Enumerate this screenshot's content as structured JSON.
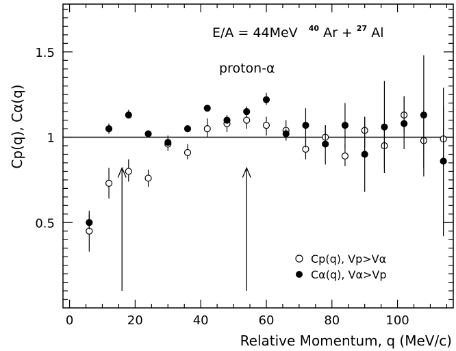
{
  "chart_data": {
    "type": "scatter",
    "xlabel": "Relative Momentum, q (MeV/c)",
    "ylabel": "Cp(q), Cα(q)",
    "xlim": [
      -2,
      117
    ],
    "ylim": [
      0,
      1.78
    ],
    "x_ticks": [
      "0",
      "20",
      "40",
      "60",
      "80",
      "100"
    ],
    "y_ticks": [
      "0.5",
      "1",
      "1.5"
    ],
    "reference_line_y": 1.0,
    "annotations": {
      "reaction_prefix": "E/A = 44MeV",
      "ar_mass": "40",
      "ar_symbol": "Ar",
      "plus": "+",
      "al_mass": "27",
      "al_symbol": "Al",
      "system": "proton-α"
    },
    "arrows_x": [
      16,
      54
    ],
    "legend_position": "bottom-right",
    "series": [
      {
        "name": "Cp(q), Vp>Vα",
        "marker": "open-circle",
        "color": "#000000",
        "points": [
          {
            "x": 6,
            "y": 0.45,
            "lo": 0.33,
            "hi": 0.55
          },
          {
            "x": 12,
            "y": 0.73,
            "lo": 0.64,
            "hi": 0.82
          },
          {
            "x": 18,
            "y": 0.8,
            "lo": 0.74,
            "hi": 0.87
          },
          {
            "x": 24,
            "y": 0.76,
            "lo": 0.71,
            "hi": 0.81
          },
          {
            "x": 30,
            "y": 0.96,
            "lo": 0.92,
            "hi": 1.01
          },
          {
            "x": 36,
            "y": 0.91,
            "lo": 0.87,
            "hi": 0.96
          },
          {
            "x": 42,
            "y": 1.05,
            "lo": 1.0,
            "hi": 1.11
          },
          {
            "x": 48,
            "y": 1.08,
            "lo": 1.03,
            "hi": 1.13
          },
          {
            "x": 54,
            "y": 1.1,
            "lo": 1.05,
            "hi": 1.16
          },
          {
            "x": 60,
            "y": 1.07,
            "lo": 1.01,
            "hi": 1.12
          },
          {
            "x": 66,
            "y": 1.04,
            "lo": 0.98,
            "hi": 1.1
          },
          {
            "x": 72,
            "y": 0.93,
            "lo": 0.87,
            "hi": 1.0
          },
          {
            "x": 78,
            "y": 1.0,
            "lo": 0.94,
            "hi": 1.07
          },
          {
            "x": 84,
            "y": 0.89,
            "lo": 0.83,
            "hi": 0.96
          },
          {
            "x": 90,
            "y": 1.04,
            "lo": 0.94,
            "hi": 1.12
          },
          {
            "x": 96,
            "y": 0.95,
            "lo": 0.82,
            "hi": 1.08
          },
          {
            "x": 102,
            "y": 1.13,
            "lo": 1.02,
            "hi": 1.24
          },
          {
            "x": 108,
            "y": 0.98,
            "lo": 0.82,
            "hi": 1.16
          },
          {
            "x": 114,
            "y": 0.99,
            "lo": 0.83,
            "hi": 1.18
          }
        ]
      },
      {
        "name": "Cα(q), Vα>Vp",
        "marker": "filled-circle",
        "color": "#000000",
        "points": [
          {
            "x": 6,
            "y": 0.5,
            "lo": 0.46,
            "hi": 0.57
          },
          {
            "x": 12,
            "y": 1.05,
            "lo": 1.02,
            "hi": 1.08
          },
          {
            "x": 18,
            "y": 1.13,
            "lo": 1.11,
            "hi": 1.16
          },
          {
            "x": 24,
            "y": 1.02,
            "lo": 1.01,
            "hi": 1.04
          },
          {
            "x": 30,
            "y": 0.97,
            "lo": 0.96,
            "hi": 0.99
          },
          {
            "x": 36,
            "y": 1.05,
            "lo": 1.04,
            "hi": 1.06
          },
          {
            "x": 42,
            "y": 1.17,
            "lo": 1.16,
            "hi": 1.19
          },
          {
            "x": 48,
            "y": 1.1,
            "lo": 1.09,
            "hi": 1.12
          },
          {
            "x": 54,
            "y": 1.15,
            "lo": 1.13,
            "hi": 1.18
          },
          {
            "x": 60,
            "y": 1.22,
            "lo": 1.19,
            "hi": 1.26
          },
          {
            "x": 66,
            "y": 1.02,
            "lo": 0.99,
            "hi": 1.05
          },
          {
            "x": 72,
            "y": 1.07,
            "lo": 0.94,
            "hi": 1.17
          },
          {
            "x": 78,
            "y": 0.96,
            "lo": 0.84,
            "hi": 1.07
          },
          {
            "x": 84,
            "y": 1.07,
            "lo": 0.94,
            "hi": 1.2
          },
          {
            "x": 90,
            "y": 0.9,
            "lo": 0.68,
            "hi": 1.12
          },
          {
            "x": 96,
            "y": 1.06,
            "lo": 0.79,
            "hi": 1.33
          },
          {
            "x": 102,
            "y": 1.08,
            "lo": 0.93,
            "hi": 1.24
          },
          {
            "x": 108,
            "y": 1.13,
            "lo": 0.77,
            "hi": 1.48
          },
          {
            "x": 114,
            "y": 0.86,
            "lo": 0.42,
            "hi": 1.29
          }
        ]
      }
    ]
  }
}
